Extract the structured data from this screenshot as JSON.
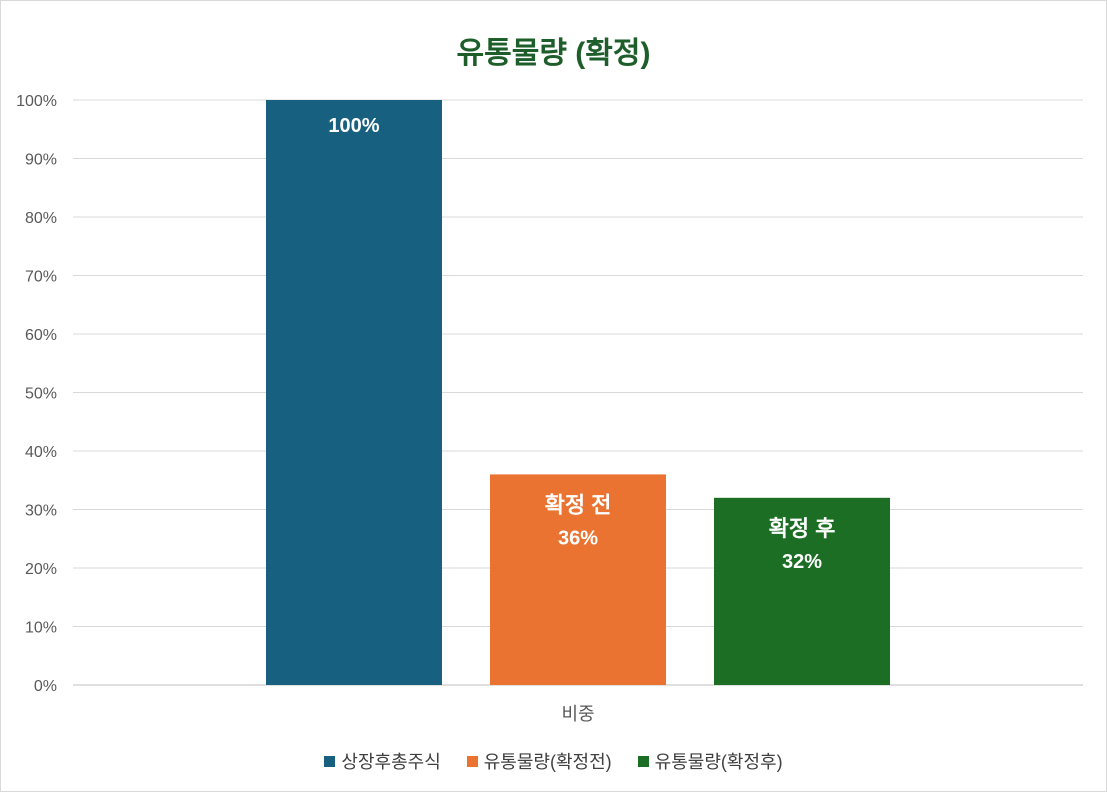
{
  "chart_data": {
    "type": "bar",
    "title": "유통물량 (확정)",
    "categories": [
      "비중"
    ],
    "ylim": [
      0,
      100
    ],
    "yticks": [
      "0%",
      "10%",
      "20%",
      "30%",
      "40%",
      "50%",
      "60%",
      "70%",
      "80%",
      "90%",
      "100%"
    ],
    "grid": true,
    "legend_position": "bottom",
    "series": [
      {
        "name": "상장후총주식",
        "values": [
          100
        ],
        "color": "#17607f",
        "label_top": "",
        "label_value": "100%"
      },
      {
        "name": "유통물량(확정전)",
        "values": [
          36
        ],
        "color": "#ea7331",
        "label_top": "확정 전",
        "label_value": "36%"
      },
      {
        "name": "유통물량(확정후)",
        "values": [
          32
        ],
        "color": "#1c6e24",
        "label_top": "확정 후",
        "label_value": "32%"
      }
    ]
  }
}
